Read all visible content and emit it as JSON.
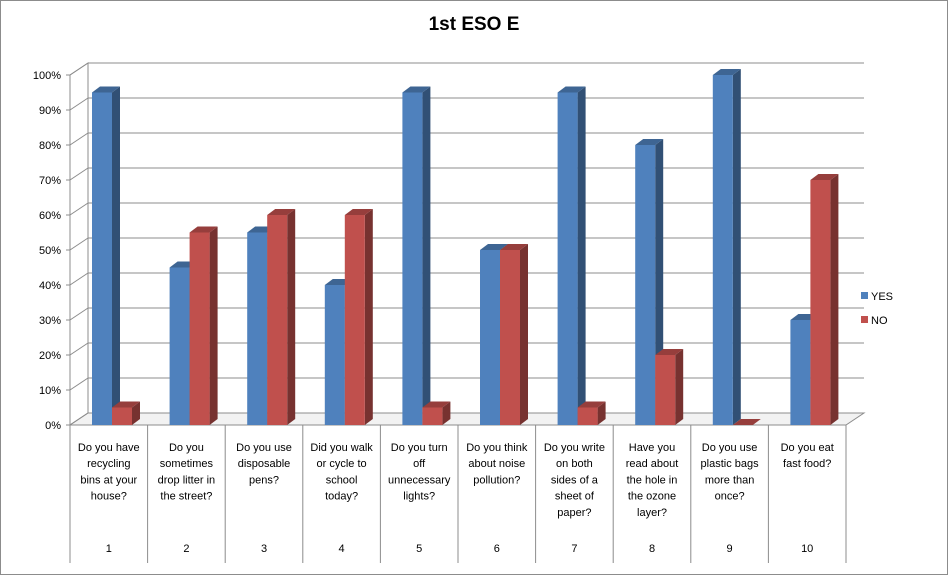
{
  "chart_data": {
    "type": "bar",
    "title": "1st ESO E",
    "categories": [
      {
        "number": "1",
        "question": [
          "Do you have",
          "recycling",
          "bins at your",
          "house?"
        ]
      },
      {
        "number": "2",
        "question": [
          "Do you",
          "sometimes",
          "drop litter in",
          "the street?"
        ]
      },
      {
        "number": "3",
        "question": [
          "Do you use",
          "disposable",
          "pens?"
        ]
      },
      {
        "number": "4",
        "question": [
          "Did you walk",
          "or cycle to",
          "school",
          "today?"
        ]
      },
      {
        "number": "5",
        "question": [
          "Do you turn",
          "off",
          "unnecessary",
          "lights?"
        ]
      },
      {
        "number": "6",
        "question": [
          "Do you think",
          "about noise",
          "pollution?"
        ]
      },
      {
        "number": "7",
        "question": [
          "Do you write",
          "on both",
          "sides of a",
          "sheet of",
          "paper?"
        ]
      },
      {
        "number": "8",
        "question": [
          "Have you",
          "read about",
          "the hole in",
          "the ozone",
          "layer?"
        ]
      },
      {
        "number": "9",
        "question": [
          "Do you use",
          "plastic bags",
          "more than",
          "once?"
        ]
      },
      {
        "number": "10",
        "question": [
          "Do you eat",
          "fast food?"
        ]
      }
    ],
    "series": [
      {
        "name": "YES",
        "color": "#4f81bd",
        "values": [
          95,
          45,
          55,
          40,
          95,
          50,
          95,
          80,
          100,
          30
        ]
      },
      {
        "name": "NO",
        "color": "#c0504d",
        "values": [
          5,
          55,
          60,
          60,
          5,
          50,
          5,
          20,
          0,
          70
        ]
      }
    ],
    "ylim": [
      0,
      100
    ],
    "yticks": [
      0,
      10,
      20,
      30,
      40,
      50,
      60,
      70,
      80,
      90,
      100
    ],
    "ytick_labels": [
      "0%",
      "10%",
      "20%",
      "30%",
      "40%",
      "50%",
      "60%",
      "70%",
      "80%",
      "90%",
      "100%"
    ],
    "legend": {
      "position": "right",
      "entries": [
        "YES",
        "NO"
      ]
    },
    "grid": true
  }
}
